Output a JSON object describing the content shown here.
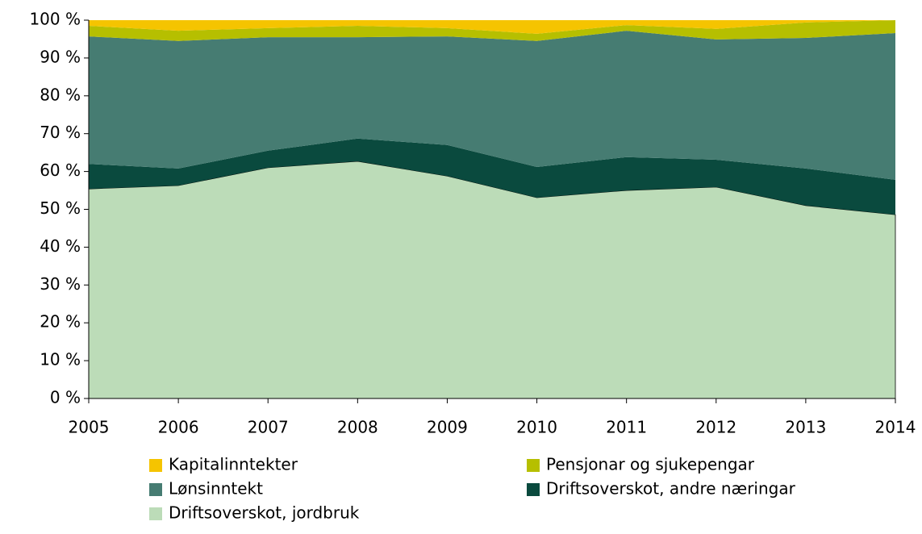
{
  "chart_data": {
    "type": "stacked_area",
    "x": [
      2005,
      2006,
      2007,
      2008,
      2009,
      2010,
      2011,
      2012,
      2013,
      2014
    ],
    "xlim": [
      2005,
      2014
    ],
    "xticks": [
      2005,
      2006,
      2007,
      2008,
      2009,
      2010,
      2011,
      2012,
      2013,
      2014
    ],
    "ylim": [
      0,
      100
    ],
    "yticks": [
      {
        "value": 0,
        "label": "0 %"
      },
      {
        "value": 10,
        "label": "10 %"
      },
      {
        "value": 20,
        "label": "20 %"
      },
      {
        "value": 30,
        "label": "30 %"
      },
      {
        "value": 40,
        "label": "40 %"
      },
      {
        "value": 50,
        "label": "50 %"
      },
      {
        "value": 60,
        "label": "60 %"
      },
      {
        "value": 70,
        "label": "70 %"
      },
      {
        "value": 80,
        "label": "80 %"
      },
      {
        "value": 90,
        "label": "90 %"
      },
      {
        "value": 100,
        "label": "100 %"
      }
    ],
    "series": [
      {
        "name": "Kapitalinntekter",
        "color": "#f5c400",
        "values": [
          1.5,
          2.8,
          2.1,
          1.5,
          2.1,
          3.6,
          1.3,
          2.3,
          0.6,
          0
        ]
      },
      {
        "name": "Pensjonar og sjukepengar",
        "color": "#b6bf00",
        "values": [
          2.8,
          2.7,
          2.4,
          3.0,
          2.2,
          1.9,
          1.5,
          2.8,
          4.1,
          3.4
        ]
      },
      {
        "name": "Lønsinntekt",
        "color": "#467c72",
        "values": [
          33.7,
          33.7,
          30.0,
          26.8,
          28.7,
          33.3,
          33.4,
          31.8,
          34.5,
          38.8
        ]
      },
      {
        "name": "Driftsoverskot, andre næringar",
        "color": "#0a4a3e",
        "values": [
          6.6,
          4.5,
          4.5,
          6.0,
          8.2,
          8.1,
          8.8,
          7.2,
          9.8,
          9.2
        ]
      },
      {
        "name": "Driftsoverskot, jordbruk",
        "color": "#bcdcb8",
        "values": [
          55.4,
          56.3,
          61.0,
          62.7,
          58.8,
          53.1,
          55.0,
          55.9,
          51.0,
          48.6
        ]
      }
    ]
  }
}
